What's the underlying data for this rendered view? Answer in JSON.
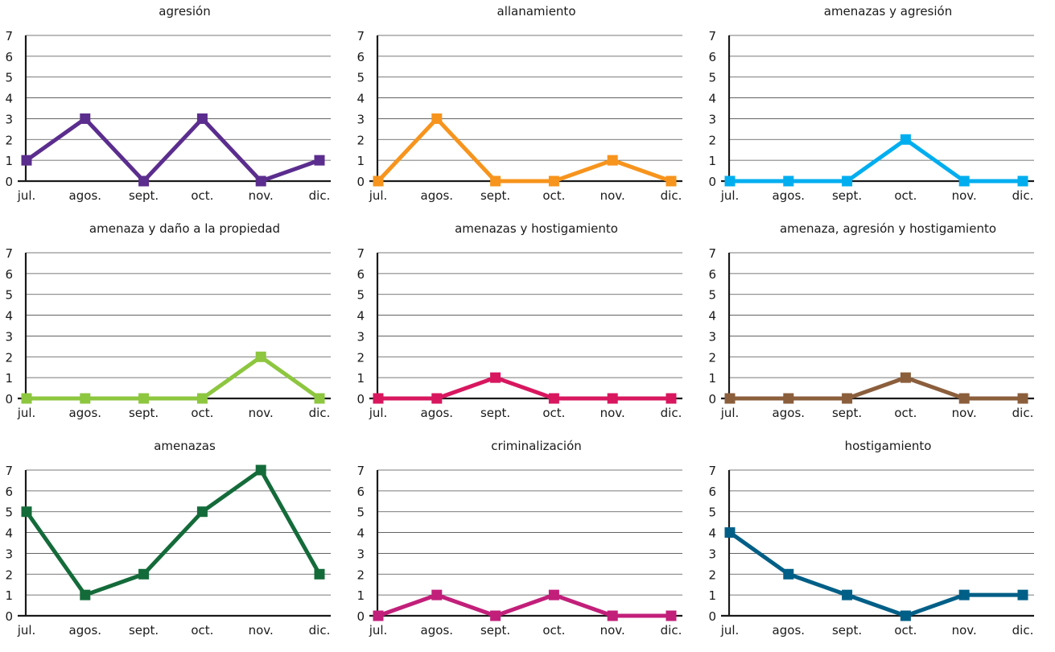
{
  "chart_data": [
    {
      "type": "line",
      "title": "agresión",
      "categories": [
        "jul.",
        "agos.",
        "sept.",
        "oct.",
        "nov.",
        "dic."
      ],
      "yticks": [
        "0",
        "1",
        "2",
        "3",
        "4",
        "5",
        "6",
        "7"
      ],
      "ylim": [
        0,
        7
      ],
      "grid": true,
      "color": "#5b2d8e",
      "values": [
        1,
        3,
        0,
        3,
        0,
        1
      ]
    },
    {
      "type": "line",
      "title": "allanamiento",
      "categories": [
        "jul.",
        "agos.",
        "sept.",
        "oct.",
        "nov.",
        "dic."
      ],
      "yticks": [
        "0",
        "1",
        "2",
        "3",
        "4",
        "5",
        "6",
        "7"
      ],
      "ylim": [
        0,
        7
      ],
      "grid": true,
      "color": "#f7941d",
      "values": [
        0,
        3,
        0,
        0,
        1,
        0
      ]
    },
    {
      "type": "line",
      "title": "amenazas y agresión",
      "categories": [
        "jul.",
        "agos.",
        "sept.",
        "oct.",
        "nov.",
        "dic."
      ],
      "yticks": [
        "0",
        "1",
        "2",
        "3",
        "4",
        "5",
        "6",
        "7"
      ],
      "ylim": [
        0,
        7
      ],
      "grid": true,
      "color": "#00aeef",
      "values": [
        0,
        0,
        0,
        2,
        0,
        0
      ]
    },
    {
      "type": "line",
      "title": "amenaza y daño a la propiedad",
      "categories": [
        "jul.",
        "agos.",
        "sept.",
        "oct.",
        "nov.",
        "dic."
      ],
      "yticks": [
        "0",
        "1",
        "2",
        "3",
        "4",
        "5",
        "6",
        "7"
      ],
      "ylim": [
        0,
        7
      ],
      "grid": true,
      "color": "#8dc63f",
      "values": [
        0,
        0,
        0,
        0,
        2,
        0
      ]
    },
    {
      "type": "line",
      "title": "amenazas y hostigamiento",
      "categories": [
        "jul.",
        "agos.",
        "sept.",
        "oct.",
        "nov.",
        "dic."
      ],
      "yticks": [
        "0",
        "1",
        "2",
        "3",
        "4",
        "5",
        "6",
        "7"
      ],
      "ylim": [
        0,
        7
      ],
      "grid": true,
      "color": "#d8175f",
      "values": [
        0,
        0,
        1,
        0,
        0,
        0
      ]
    },
    {
      "type": "line",
      "title": "amenaza, agresión y hostigamiento",
      "categories": [
        "jul.",
        "agos.",
        "sept.",
        "oct.",
        "nov.",
        "dic."
      ],
      "yticks": [
        "0",
        "1",
        "2",
        "3",
        "4",
        "5",
        "6",
        "7"
      ],
      "ylim": [
        0,
        7
      ],
      "grid": true,
      "color": "#8b5e3c",
      "values": [
        0,
        0,
        0,
        1,
        0,
        0
      ]
    },
    {
      "type": "line",
      "title": "amenazas",
      "categories": [
        "jul.",
        "agos.",
        "sept.",
        "oct.",
        "nov.",
        "dic."
      ],
      "yticks": [
        "0",
        "1",
        "2",
        "3",
        "4",
        "5",
        "6",
        "7"
      ],
      "ylim": [
        0,
        7
      ],
      "grid": true,
      "color": "#146b3a",
      "values": [
        5,
        1,
        2,
        5,
        7,
        2
      ]
    },
    {
      "type": "line",
      "title": "criminalización",
      "categories": [
        "jul.",
        "agos.",
        "sept.",
        "oct.",
        "nov.",
        "dic."
      ],
      "yticks": [
        "0",
        "1",
        "2",
        "3",
        "4",
        "5",
        "6",
        "7"
      ],
      "ylim": [
        0,
        7
      ],
      "grid": true,
      "color": "#c21f7a",
      "values": [
        0,
        1,
        0,
        1,
        0,
        0
      ]
    },
    {
      "type": "line",
      "title": "hostigamiento",
      "categories": [
        "jul.",
        "agos.",
        "sept.",
        "oct.",
        "nov.",
        "dic."
      ],
      "yticks": [
        "0",
        "1",
        "2",
        "3",
        "4",
        "5",
        "6",
        "7"
      ],
      "ylim": [
        0,
        7
      ],
      "grid": true,
      "color": "#005f87",
      "values": [
        4,
        2,
        1,
        0,
        1,
        1
      ]
    }
  ]
}
